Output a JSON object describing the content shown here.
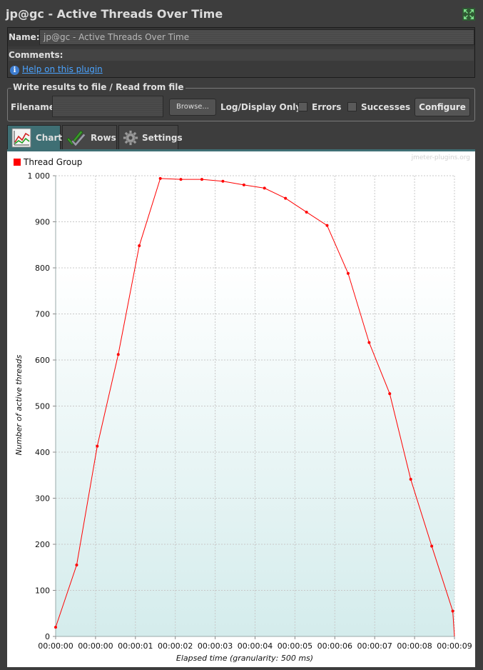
{
  "window": {
    "title": "jp@gc - Active Threads Over Time"
  },
  "info": {
    "name_label": "Name:",
    "name_value": "jp@gc - Active Threads Over Time",
    "comments_label": "Comments:",
    "help_link": "Help on this plugin"
  },
  "file_panel": {
    "legend": "Write results to file / Read from file",
    "filename_label": "Filename",
    "filename_value": "",
    "browse_label": "Browse...",
    "log_label": "Log/Display Only:",
    "errors_label": "Errors",
    "successes_label": "Successes",
    "configure_label": "Configure"
  },
  "tabs": [
    {
      "label": "Chart",
      "icon": "chart-icon",
      "active": true
    },
    {
      "label": "Rows",
      "icon": "checkmarks-icon",
      "active": false
    },
    {
      "label": "Settings",
      "icon": "gear-icon",
      "active": false
    }
  ],
  "colors": {
    "series": "#ff0000",
    "accent": "#3f6f74",
    "background": "#3d3d3d"
  },
  "chart_data": {
    "type": "line",
    "watermark": "jmeter-plugins.org",
    "xlabel": "Elapsed time (granularity: 500 ms)",
    "ylabel": "Number of active threads",
    "ylim": [
      0,
      1000
    ],
    "xlim": [
      0,
      9.3
    ],
    "yticks": [
      {
        "v": 0,
        "label": "0"
      },
      {
        "v": 100,
        "label": "100"
      },
      {
        "v": 200,
        "label": "200"
      },
      {
        "v": 300,
        "label": "300"
      },
      {
        "v": 400,
        "label": "400"
      },
      {
        "v": 500,
        "label": "500"
      },
      {
        "v": 600,
        "label": "600"
      },
      {
        "v": 700,
        "label": "700"
      },
      {
        "v": 800,
        "label": "800"
      },
      {
        "v": 900,
        "label": "900"
      },
      {
        "v": 1000,
        "label": "1 000"
      }
    ],
    "xticks": [
      {
        "v": 0,
        "label": "00:00:00"
      },
      {
        "v": 0.93,
        "label": "00:00:00"
      },
      {
        "v": 1.86,
        "label": "00:00:01"
      },
      {
        "v": 2.79,
        "label": "00:00:02"
      },
      {
        "v": 3.72,
        "label": "00:00:03"
      },
      {
        "v": 4.65,
        "label": "00:00:04"
      },
      {
        "v": 5.58,
        "label": "00:00:05"
      },
      {
        "v": 6.51,
        "label": "00:00:06"
      },
      {
        "v": 7.44,
        "label": "00:00:07"
      },
      {
        "v": 8.37,
        "label": "00:00:08"
      },
      {
        "v": 9.3,
        "label": "00:00:09"
      }
    ],
    "grid": true,
    "legend_position": "top-left",
    "series": [
      {
        "name": "Thread Group",
        "color": "#ff0000",
        "x": [
          0,
          0.49,
          0.97,
          1.46,
          1.95,
          2.44,
          2.92,
          3.41,
          3.9,
          4.39,
          4.87,
          5.36,
          5.85,
          6.33,
          6.82,
          7.31,
          7.79,
          8.28,
          8.77,
          9.26,
          9.3
        ],
        "y": [
          20,
          155,
          413,
          612,
          848,
          994,
          992,
          992,
          988,
          980,
          973,
          951,
          921,
          892,
          788,
          638,
          527,
          341,
          196,
          55,
          0
        ]
      }
    ]
  }
}
